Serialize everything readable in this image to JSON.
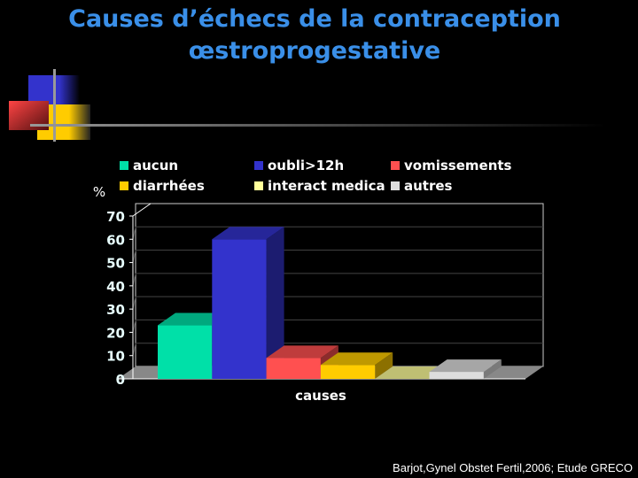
{
  "title_lines": [
    "Causes d’échecs de la contraception",
    "œstroprogestative"
  ],
  "source": "Barjot,Gynel Obstet Fertil,2006; Etude GRECO",
  "chart_data": {
    "type": "bar",
    "title": "",
    "xlabel": "causes",
    "ylabel": "%",
    "ylim": [
      0,
      70
    ],
    "yticks": [
      "0",
      "10",
      "20",
      "30",
      "40",
      "50",
      "60",
      "70"
    ],
    "legend_position": "top",
    "series": [
      {
        "name": "aucun",
        "value": 23,
        "color": "#00e0a8"
      },
      {
        "name": "oubli>12h",
        "value": 60,
        "color": "#3333cc"
      },
      {
        "name": "vomissements",
        "value": 9,
        "color": "#ff5050"
      },
      {
        "name": "diarrhées",
        "value": 6,
        "color": "#ffcc00"
      },
      {
        "name": "interact medica",
        "value": 0,
        "color": "#ffff99"
      },
      {
        "name": "autres",
        "value": 3,
        "color": "#dddddd"
      }
    ]
  }
}
